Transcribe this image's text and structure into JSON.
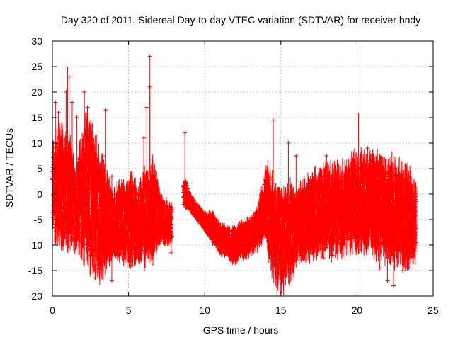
{
  "chart_data": {
    "type": "scatter",
    "title": "Day 320 of 2011, Sidereal Day-to-day VTEC variation (SDTVAR) for receiver bndy",
    "xlabel": "GPS time / hours",
    "ylabel": "SDTVAR / TECUs",
    "xlim": [
      0,
      25
    ],
    "ylim": [
      -20,
      30
    ],
    "xticks": [
      "0",
      "5",
      "10",
      "15",
      "20",
      "25"
    ],
    "yticks": [
      "-20",
      "-15",
      "-10",
      "-5",
      "0",
      "5",
      "10",
      "15",
      "20",
      "25",
      "30"
    ],
    "grid": true,
    "marker": "+",
    "color": "#ff0000",
    "series": [
      {
        "name": "SDTVAR",
        "envelope": {
          "x": [
            0.0,
            0.3,
            0.5,
            0.8,
            1.0,
            1.3,
            1.6,
            2.0,
            2.3,
            2.6,
            3.0,
            3.3,
            3.6,
            4.0,
            4.4,
            4.8,
            5.2,
            5.6,
            6.0,
            6.3,
            6.6,
            7.0,
            7.3,
            7.6,
            8.0,
            8.3,
            8.7,
            9.0,
            9.5,
            10.0,
            10.5,
            11.0,
            11.5,
            12.0,
            12.5,
            13.0,
            13.5,
            14.0,
            14.3,
            14.6,
            15.0,
            15.5,
            16.0,
            16.5,
            17.0,
            17.5,
            18.0,
            18.5,
            19.0,
            19.5,
            20.0,
            20.5,
            21.0,
            21.5,
            22.0,
            22.5,
            23.0,
            23.5,
            23.9
          ],
          "lower": [
            -6,
            -8,
            -7,
            -8,
            -9,
            -9,
            -9,
            -10,
            -10,
            -13,
            -15,
            -14,
            -12,
            -11,
            -11,
            -12,
            -12,
            -12,
            -12,
            -11,
            -11,
            -9,
            -9,
            -9,
            -8,
            -3,
            -2,
            -3,
            -5,
            -7,
            -9,
            -11,
            -12,
            -13,
            -12,
            -11,
            -10,
            -7,
            -12,
            -16,
            -17,
            -15,
            -13,
            -11,
            -11,
            -10,
            -10,
            -10,
            -10,
            -9,
            -9,
            -9,
            -10,
            -10,
            -11,
            -12,
            -12,
            -12,
            -11
          ],
          "upper": [
            8,
            10,
            12,
            9,
            10,
            6,
            4,
            10,
            13,
            10,
            6,
            4,
            2,
            -1,
            1,
            0,
            2,
            0,
            3,
            3,
            5,
            0,
            -2,
            -2,
            -3,
            -3,
            3,
            0,
            -2,
            -4,
            -4,
            -6,
            -7,
            -7,
            -6,
            -5,
            -3,
            4,
            4,
            0,
            -1,
            0,
            -1,
            1,
            2,
            3,
            4,
            4,
            4,
            5,
            6,
            6,
            7,
            5,
            5,
            4,
            4,
            3,
            1
          ]
        },
        "spikes": [
          {
            "x": 0.2,
            "y": 18
          },
          {
            "x": 0.4,
            "y": 16
          },
          {
            "x": 0.9,
            "y": 20
          },
          {
            "x": 1.0,
            "y": 24.5
          },
          {
            "x": 1.1,
            "y": 23
          },
          {
            "x": 1.3,
            "y": 18
          },
          {
            "x": 1.6,
            "y": 15
          },
          {
            "x": 2.1,
            "y": 20
          },
          {
            "x": 2.3,
            "y": 17
          },
          {
            "x": 3.5,
            "y": 16.5
          },
          {
            "x": 3.3,
            "y": 7.5
          },
          {
            "x": 3.9,
            "y": 3.5
          },
          {
            "x": 6.0,
            "y": 11
          },
          {
            "x": 6.2,
            "y": 17
          },
          {
            "x": 6.4,
            "y": 27
          },
          {
            "x": 6.4,
            "y": 21
          },
          {
            "x": 6.7,
            "y": 3.5
          },
          {
            "x": 8.7,
            "y": 12
          },
          {
            "x": 14.5,
            "y": 14.5
          },
          {
            "x": 15.5,
            "y": 10
          },
          {
            "x": 16.0,
            "y": 7.5
          },
          {
            "x": 20.1,
            "y": 15.5
          },
          {
            "x": 18.0,
            "y": 7.5
          },
          {
            "x": 20.7,
            "y": 9
          },
          {
            "x": 22.5,
            "y": 5
          }
        ],
        "outliers": [
          {
            "x": 2.8,
            "y": -16.5
          },
          {
            "x": 3.9,
            "y": -17
          },
          {
            "x": 5.2,
            "y": -14
          },
          {
            "x": 7.8,
            "y": -11.5
          },
          {
            "x": 17.8,
            "y": -12.5
          },
          {
            "x": 18.0,
            "y": -10.5
          },
          {
            "x": 18.4,
            "y": -12
          },
          {
            "x": 21.5,
            "y": -14.5
          },
          {
            "x": 22.0,
            "y": -17
          },
          {
            "x": 22.4,
            "y": -18
          },
          {
            "x": 23.0,
            "y": -15
          },
          {
            "x": 23.4,
            "y": -14.5
          }
        ]
      }
    ]
  }
}
